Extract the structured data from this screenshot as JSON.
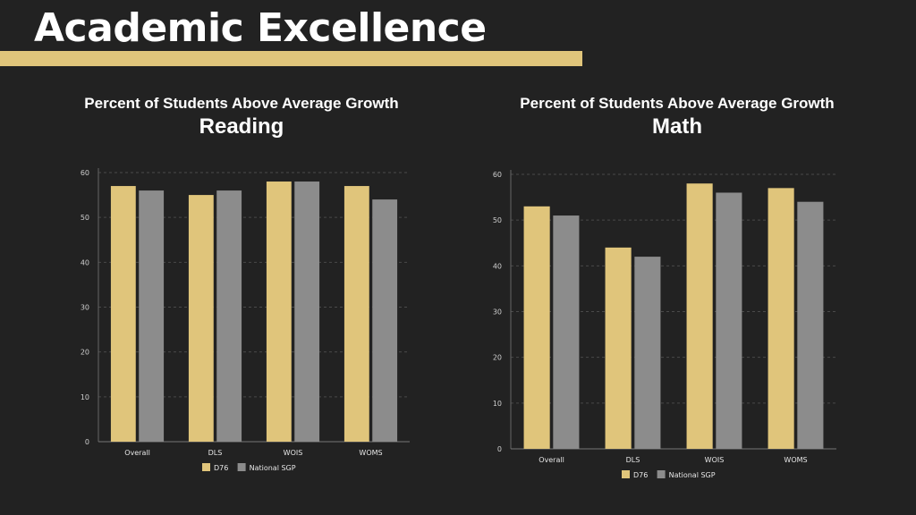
{
  "page": {
    "title": "Academic Excellence",
    "accent_color": "#e0c57b",
    "secondary_color": "#8c8c8c",
    "background": "#222222"
  },
  "chart_data": [
    {
      "type": "bar",
      "subtitle": "Percent of Students Above Average Growth",
      "title": "Reading",
      "categories": [
        "Overall",
        "DLS",
        "WOIS",
        "WOMS"
      ],
      "series": [
        {
          "name": "D76",
          "values": [
            57,
            55,
            58,
            57
          ],
          "color": "#e0c57b"
        },
        {
          "name": "National SGP",
          "values": [
            56,
            56,
            58,
            54
          ],
          "color": "#8c8c8c"
        }
      ],
      "ylim": [
        0,
        60
      ],
      "yticks": [
        0,
        10,
        20,
        30,
        40,
        50,
        60
      ],
      "grid": true,
      "legend_position": "bottom"
    },
    {
      "type": "bar",
      "subtitle": "Percent of Students Above Average Growth",
      "title": "Math",
      "categories": [
        "Overall",
        "DLS",
        "WOIS",
        "WOMS"
      ],
      "series": [
        {
          "name": "D76",
          "values": [
            53,
            44,
            58,
            57
          ],
          "color": "#e0c57b"
        },
        {
          "name": "National SGP",
          "values": [
            51,
            42,
            56,
            54
          ],
          "color": "#8c8c8c"
        }
      ],
      "ylim": [
        0,
        60
      ],
      "yticks": [
        0,
        10,
        20,
        30,
        40,
        50,
        60
      ],
      "grid": true,
      "legend_position": "bottom"
    }
  ]
}
